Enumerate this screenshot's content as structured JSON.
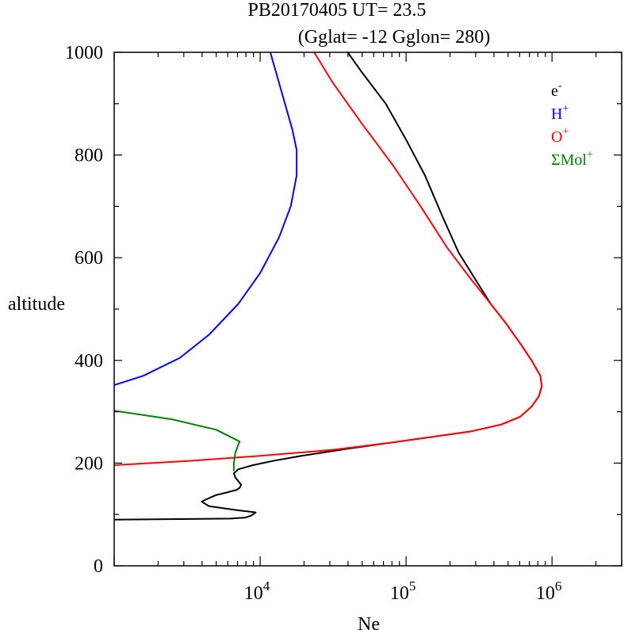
{
  "chart_data": {
    "type": "line",
    "title_line1": "PB20170405   UT=  23.5",
    "title_line2": "(Gglat= -12   Gglon=  280)",
    "xlabel": "Ne",
    "ylabel": "altitude",
    "xscale": "log",
    "xlim": [
      1000,
      3000000
    ],
    "ylim": [
      0,
      1000
    ],
    "x_ticks": [
      {
        "exp": 4,
        "base": "10",
        "power": "4"
      },
      {
        "exp": 5,
        "base": "10",
        "power": "5"
      },
      {
        "exp": 6,
        "base": "10",
        "power": "6"
      }
    ],
    "y_ticks": [
      "0",
      "200",
      "400",
      "600",
      "800",
      "1000"
    ],
    "legend_position": "top-right",
    "series": [
      {
        "key": "e",
        "name": "e",
        "sup": "-",
        "color": "#000000",
        "points": [
          [
            3.0,
            90
          ],
          [
            3.8,
            92
          ],
          [
            3.9,
            94
          ],
          [
            3.92,
            96
          ],
          [
            3.94,
            98
          ],
          [
            3.95,
            100
          ],
          [
            3.96,
            102
          ],
          [
            3.97,
            104
          ],
          [
            3.91,
            106
          ],
          [
            3.85,
            108
          ],
          [
            3.75,
            112
          ],
          [
            3.65,
            116
          ],
          [
            3.6,
            125
          ],
          [
            3.62,
            128
          ],
          [
            3.7,
            138
          ],
          [
            3.76,
            142
          ],
          [
            3.84,
            148
          ],
          [
            3.86,
            152
          ],
          [
            3.87,
            158
          ],
          [
            3.85,
            165
          ],
          [
            3.83,
            172
          ],
          [
            3.82,
            180
          ],
          [
            3.85,
            188
          ],
          [
            3.95,
            196
          ],
          [
            4.1,
            205
          ],
          [
            4.3,
            215
          ],
          [
            4.6,
            228
          ],
          [
            4.9,
            240
          ],
          [
            5.2,
            252
          ],
          [
            5.45,
            262
          ],
          [
            5.65,
            275
          ],
          [
            5.78,
            290
          ],
          [
            5.86,
            310
          ],
          [
            5.91,
            330
          ],
          [
            5.93,
            350
          ],
          [
            5.92,
            370
          ],
          [
            5.86,
            400
          ],
          [
            5.79,
            430
          ],
          [
            5.69,
            470
          ],
          [
            5.58,
            510
          ],
          [
            5.47,
            560
          ],
          [
            5.36,
            610
          ],
          [
            5.25,
            680
          ],
          [
            5.13,
            760
          ],
          [
            5.0,
            830
          ],
          [
            4.86,
            900
          ],
          [
            4.7,
            960
          ],
          [
            4.6,
            1000
          ]
        ]
      },
      {
        "key": "h",
        "name": "H",
        "sup": "+",
        "color": "#0000ff",
        "points": [
          [
            3.0,
            352
          ],
          [
            3.2,
            370
          ],
          [
            3.45,
            405
          ],
          [
            3.65,
            450
          ],
          [
            3.85,
            510
          ],
          [
            4.0,
            570
          ],
          [
            4.13,
            640
          ],
          [
            4.21,
            700
          ],
          [
            4.25,
            760
          ],
          [
            4.25,
            810
          ],
          [
            4.22,
            850
          ],
          [
            4.17,
            900
          ],
          [
            4.11,
            960
          ],
          [
            4.07,
            1000
          ]
        ]
      },
      {
        "key": "o",
        "name": "O",
        "sup": "+",
        "color": "#ff0000",
        "points": [
          [
            3.0,
            196
          ],
          [
            3.5,
            204
          ],
          [
            4.0,
            214
          ],
          [
            4.5,
            226
          ],
          [
            4.9,
            240
          ],
          [
            5.2,
            252
          ],
          [
            5.45,
            262
          ],
          [
            5.65,
            275
          ],
          [
            5.78,
            290
          ],
          [
            5.86,
            310
          ],
          [
            5.91,
            330
          ],
          [
            5.93,
            350
          ],
          [
            5.92,
            370
          ],
          [
            5.86,
            400
          ],
          [
            5.79,
            430
          ],
          [
            5.69,
            470
          ],
          [
            5.58,
            510
          ],
          [
            5.44,
            560
          ],
          [
            5.28,
            620
          ],
          [
            5.1,
            700
          ],
          [
            4.91,
            780
          ],
          [
            4.7,
            860
          ],
          [
            4.5,
            940
          ],
          [
            4.37,
            1000
          ]
        ]
      },
      {
        "key": "mol",
        "name": "ΣMol",
        "sup": "+",
        "color": "#008000",
        "points": [
          [
            3.0,
            302
          ],
          [
            3.4,
            285
          ],
          [
            3.7,
            265
          ],
          [
            3.86,
            242
          ],
          [
            3.85,
            236
          ],
          [
            3.83,
            220
          ],
          [
            3.82,
            200
          ],
          [
            3.82,
            185
          ]
        ]
      }
    ]
  }
}
